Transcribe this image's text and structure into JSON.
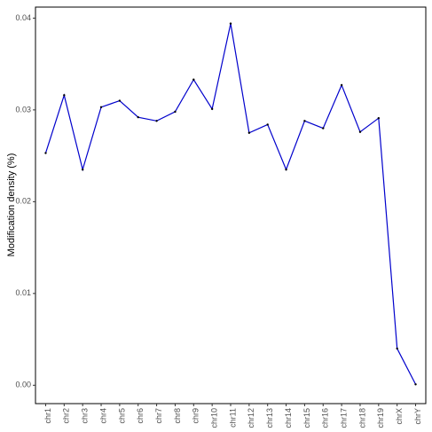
{
  "chart_data": {
    "type": "line",
    "y_label": "Modification density (%)",
    "categories": [
      "chr1",
      "chr2",
      "chr3",
      "chr4",
      "chr5",
      "chr6",
      "chr7",
      "chr8",
      "chr9",
      "chr10",
      "chr11",
      "chr12",
      "chr13",
      "chr14",
      "chr15",
      "chr16",
      "chr17",
      "chr18",
      "chr19",
      "chrX",
      "chrY"
    ],
    "values": [
      0.0253,
      0.0316,
      0.0235,
      0.0303,
      0.031,
      0.0292,
      0.0288,
      0.0298,
      0.0333,
      0.0301,
      0.0394,
      0.0275,
      0.0284,
      0.0235,
      0.0288,
      0.028,
      0.0327,
      0.0276,
      0.0291,
      0.004,
      0.0001
    ],
    "color": "#0000cc",
    "ylim": [
      -0.002,
      0.0412
    ],
    "yticks": [
      {
        "value": 0,
        "label": "0.00"
      },
      {
        "value": 0.01,
        "label": "0.01"
      },
      {
        "value": 0.02,
        "label": "0.02"
      },
      {
        "value": 0.03,
        "label": "0.03"
      },
      {
        "value": 0.04,
        "label": "0.04"
      }
    ],
    "grid": false
  }
}
